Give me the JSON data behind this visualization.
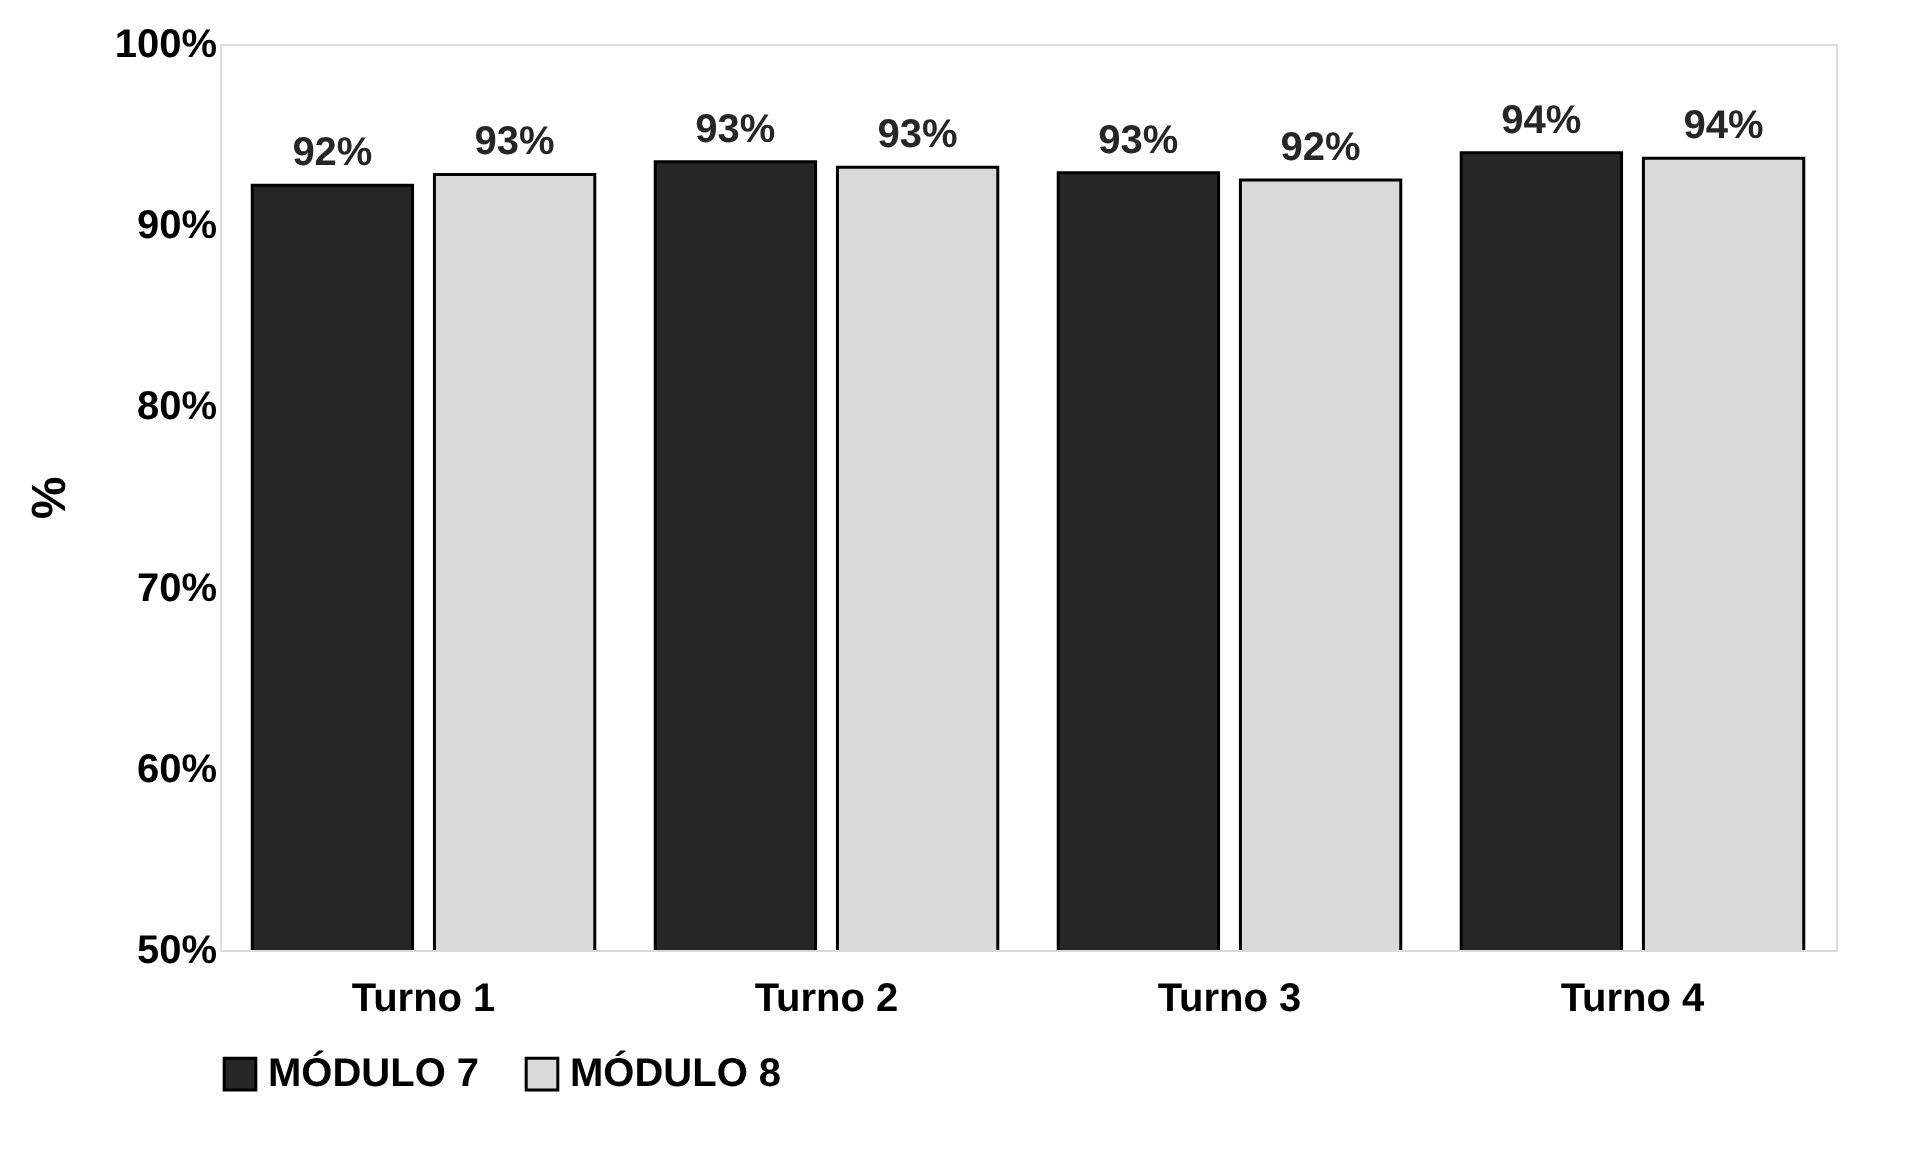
{
  "chart_data": {
    "type": "bar",
    "ylabel": "%",
    "categories": [
      "Turno 1",
      "Turno 2",
      "Turno 3",
      "Turno 4"
    ],
    "series": [
      {
        "name": "MÓDULO 7",
        "color": "#262626",
        "values": [
          92.2,
          93.5,
          92.9,
          94.0
        ],
        "value_labels": [
          "92%",
          "93%",
          "93%",
          "94%"
        ]
      },
      {
        "name": "MÓDULO 8",
        "color": "#d9d9d9",
        "values": [
          92.8,
          93.2,
          92.5,
          93.7
        ],
        "value_labels": [
          "93%",
          "93%",
          "92%",
          "94%"
        ]
      }
    ],
    "ylim": [
      50,
      100
    ],
    "yticks": [
      {
        "value": 50,
        "label": "50%"
      },
      {
        "value": 60,
        "label": "60%"
      },
      {
        "value": 70,
        "label": "70%"
      },
      {
        "value": 80,
        "label": "80%"
      },
      {
        "value": 90,
        "label": "90%"
      },
      {
        "value": 100,
        "label": "100%"
      }
    ],
    "grid": false,
    "legend": "bottom"
  }
}
